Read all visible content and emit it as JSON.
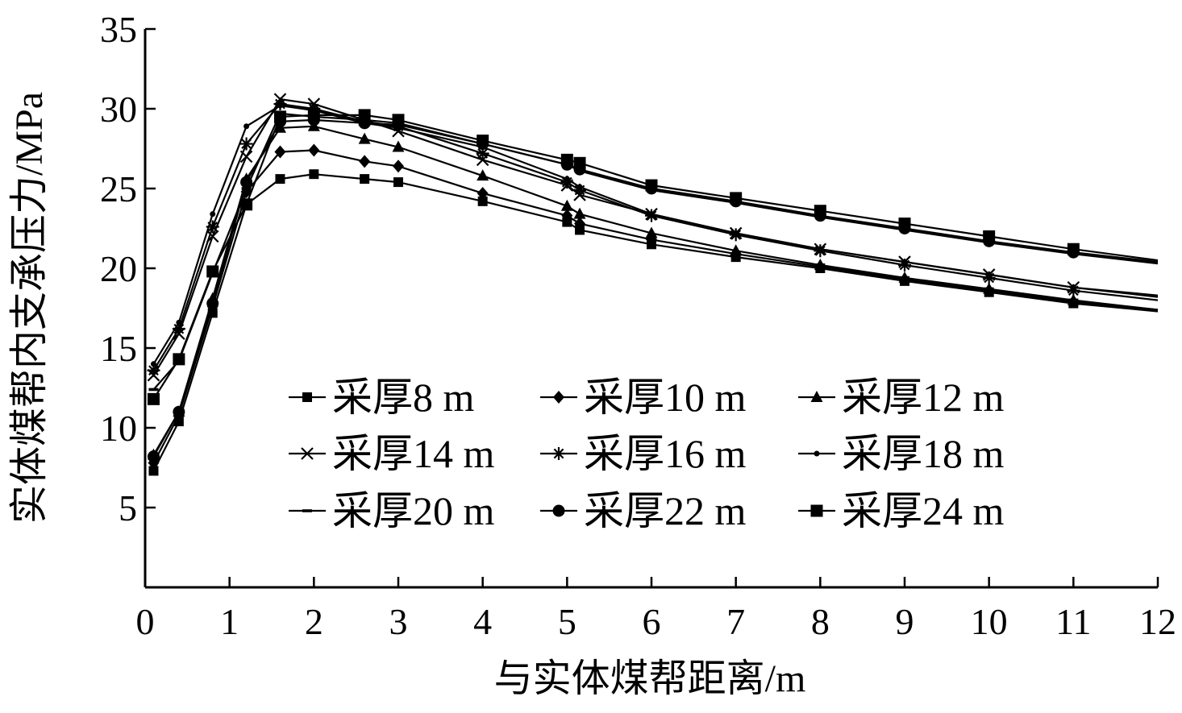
{
  "chart_data": {
    "type": "line",
    "title": "",
    "xlabel": "与实体煤帮距离/m",
    "ylabel": "实体煤帮内支承压力/MPa",
    "xlim": [
      0,
      12
    ],
    "ylim": [
      0,
      35
    ],
    "x_ticks": [
      "0",
      "1",
      "2",
      "3",
      "4",
      "5",
      "6",
      "7",
      "8",
      "9",
      "10",
      "11",
      "12"
    ],
    "y_ticks": [
      "5",
      "10",
      "15",
      "20",
      "25",
      "30",
      "35"
    ],
    "grid": false,
    "legend_position": "center",
    "series": [
      {
        "name": "采厚8 m",
        "marker": "square",
        "x": [
          0.1,
          0.4,
          0.8,
          1.2,
          1.6,
          2.0,
          2.6,
          3.0,
          4.0,
          5.0,
          5.15,
          6.0,
          7.0,
          8.0,
          9.0,
          10.0,
          11.0,
          12.0
        ],
        "y": [
          7.3,
          10.4,
          17.2,
          24.0,
          25.6,
          25.9,
          25.6,
          25.4,
          24.2,
          22.9,
          22.4,
          21.5,
          20.7,
          20.0,
          19.2,
          18.5,
          17.8,
          17.3
        ]
      },
      {
        "name": "采厚10 m",
        "marker": "diamond",
        "x": [
          0.1,
          0.4,
          0.8,
          1.2,
          1.6,
          2.0,
          2.6,
          3.0,
          4.0,
          5.0,
          5.15,
          6.0,
          7.0,
          8.0,
          9.0,
          10.0,
          11.0,
          12.0
        ],
        "y": [
          7.8,
          10.8,
          17.6,
          24.8,
          27.3,
          27.4,
          26.7,
          26.4,
          24.7,
          23.3,
          22.8,
          21.8,
          20.9,
          20.1,
          19.3,
          18.6,
          17.9,
          17.4
        ]
      },
      {
        "name": "采厚12 m",
        "marker": "triangle",
        "x": [
          0.1,
          0.4,
          0.8,
          1.2,
          1.6,
          2.0,
          2.6,
          3.0,
          4.0,
          5.0,
          5.15,
          6.0,
          7.0,
          8.0,
          9.0,
          10.0,
          11.0,
          12.0
        ],
        "y": [
          8.3,
          11.0,
          18.1,
          25.6,
          28.8,
          28.9,
          28.1,
          27.6,
          25.8,
          23.9,
          23.4,
          22.2,
          21.1,
          20.2,
          19.4,
          18.7,
          18.0,
          17.4
        ]
      },
      {
        "name": "采厚14 m",
        "marker": "x",
        "x": [
          0.1,
          0.4,
          0.8,
          1.2,
          1.6,
          2.0,
          2.6,
          3.0,
          4.0,
          5.0,
          5.15,
          6.0,
          7.0,
          8.0,
          9.0,
          10.0,
          11.0,
          12.0
        ],
        "y": [
          13.3,
          15.9,
          22.0,
          27.0,
          30.6,
          30.3,
          29.3,
          28.6,
          26.8,
          25.2,
          24.6,
          23.4,
          22.2,
          21.2,
          20.4,
          19.6,
          18.8,
          18.2
        ]
      },
      {
        "name": "采厚16 m",
        "marker": "asterisk",
        "x": [
          0.1,
          0.4,
          0.8,
          1.2,
          1.6,
          2.0,
          2.6,
          3.0,
          4.0,
          5.0,
          5.15,
          6.0,
          7.0,
          8.0,
          9.0,
          10.0,
          11.0,
          12.0
        ],
        "y": [
          13.6,
          16.2,
          22.6,
          27.8,
          30.3,
          30.0,
          29.2,
          28.9,
          27.2,
          25.4,
          24.9,
          23.3,
          22.1,
          21.1,
          20.2,
          19.4,
          18.6,
          18.0
        ]
      },
      {
        "name": "采厚18 m",
        "marker": "dot",
        "x": [
          0.1,
          0.4,
          0.8,
          1.2,
          1.6,
          2.0,
          2.6,
          3.0,
          4.0,
          5.0,
          5.15,
          6.0,
          7.0,
          8.0,
          9.0,
          10.0,
          11.0,
          12.0
        ],
        "y": [
          14.0,
          16.6,
          23.4,
          28.9,
          30.2,
          29.9,
          29.1,
          28.8,
          27.6,
          25.6,
          25.1,
          23.4,
          22.2,
          21.2,
          20.4,
          19.6,
          18.8,
          18.3
        ]
      },
      {
        "name": "采厚20 m",
        "marker": "dash",
        "x": [
          0.1,
          0.4,
          0.8,
          1.2,
          1.6,
          2.0,
          2.6,
          3.0,
          4.0,
          5.0,
          5.15,
          6.0,
          7.0,
          8.0,
          9.0,
          10.0,
          11.0,
          12.0
        ],
        "y": [
          12.4,
          14.2,
          19.7,
          25.0,
          29.7,
          29.5,
          29.3,
          29.1,
          27.8,
          26.5,
          26.1,
          24.9,
          24.1,
          23.2,
          22.4,
          21.6,
          20.9,
          20.3
        ]
      },
      {
        "name": "采厚22 m",
        "marker": "circle",
        "x": [
          0.1,
          0.4,
          0.8,
          1.2,
          1.6,
          2.0,
          2.6,
          3.0,
          4.0,
          5.0,
          5.15,
          6.0,
          7.0,
          8.0,
          9.0,
          10.0,
          11.0,
          12.0
        ],
        "y": [
          8.2,
          11.0,
          17.8,
          25.4,
          29.2,
          29.3,
          29.1,
          29.0,
          27.8,
          26.5,
          26.2,
          25.0,
          24.2,
          23.3,
          22.5,
          21.7,
          21.0,
          20.4
        ]
      },
      {
        "name": "采厚24 m",
        "marker": "bigsquare",
        "x": [
          0.1,
          0.4,
          0.8,
          1.2,
          1.6,
          2.0,
          2.6,
          3.0,
          4.0,
          5.0,
          5.15,
          6.0,
          7.0,
          8.0,
          9.0,
          10.0,
          11.0,
          12.0
        ],
        "y": [
          11.8,
          14.3,
          19.8,
          24.0,
          29.5,
          29.6,
          29.6,
          29.3,
          28.0,
          26.8,
          26.6,
          25.2,
          24.4,
          23.6,
          22.8,
          22.0,
          21.2,
          20.5
        ]
      }
    ]
  }
}
